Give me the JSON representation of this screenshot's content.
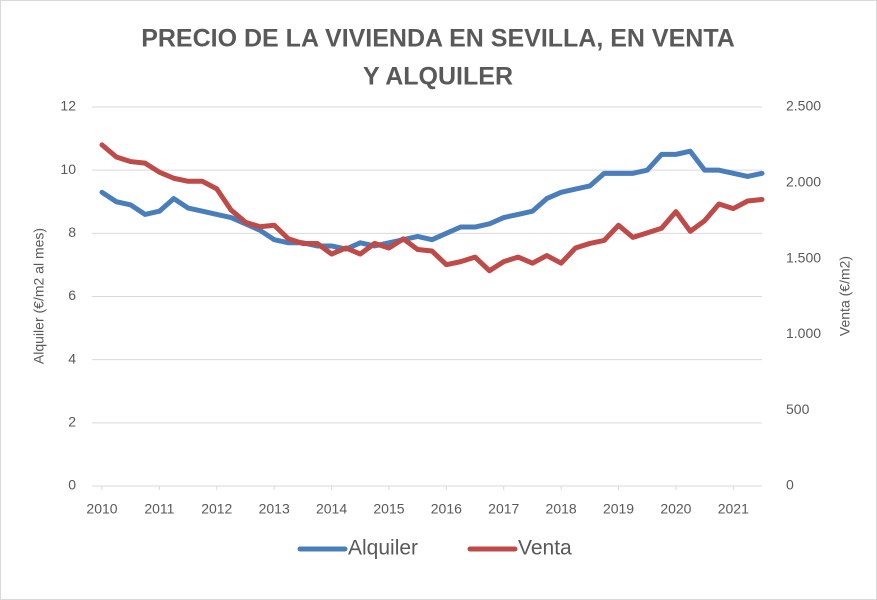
{
  "chart_data": {
    "type": "line",
    "title": [
      "PRECIO DE LA VIVIENDA EN SEVILLA, EN VENTA",
      "Y ALQUILER"
    ],
    "y_label": "Alquiler (€/m2 al mes)",
    "y2_label": "Venta (€/m2)",
    "x": [
      2010,
      2010.25,
      2010.5,
      2010.75,
      2011,
      2011.25,
      2011.5,
      2011.75,
      2012,
      2012.25,
      2012.5,
      2012.75,
      2013,
      2013.25,
      2013.5,
      2013.75,
      2014,
      2014.25,
      2014.5,
      2014.75,
      2015,
      2015.25,
      2015.5,
      2015.75,
      2016,
      2016.25,
      2016.5,
      2016.75,
      2017,
      2017.25,
      2017.5,
      2017.75,
      2018,
      2018.25,
      2018.5,
      2018.75,
      2019,
      2019.25,
      2019.5,
      2019.75,
      2020,
      2020.25,
      2020.5,
      2020.75,
      2021,
      2021.25,
      2021.5
    ],
    "xlim": [
      2010,
      2021.5
    ],
    "xticks": [
      2010,
      2011,
      2012,
      2013,
      2014,
      2015,
      2016,
      2017,
      2018,
      2019,
      2020,
      2021
    ],
    "ylim": [
      0,
      12
    ],
    "yticks": [
      0,
      2,
      4,
      6,
      8,
      10,
      12
    ],
    "y2lim": [
      0,
      2500
    ],
    "y2ticks": [
      0,
      500,
      {
        "value": 1000,
        "label": "1.000"
      },
      {
        "value": 1500,
        "label": "1.500"
      },
      {
        "value": 2000,
        "label": "2.000"
      },
      {
        "value": 2500,
        "label": "2.500"
      }
    ],
    "grid": true,
    "legend": "bottom",
    "series": [
      {
        "name": "Alquiler",
        "color": "#4a7ebb",
        "values": [
          9.3,
          9.0,
          8.9,
          8.6,
          8.7,
          9.1,
          8.8,
          8.7,
          8.6,
          8.5,
          8.3,
          8.1,
          7.8,
          7.7,
          7.7,
          7.6,
          7.6,
          7.5,
          7.7,
          7.6,
          7.7,
          7.8,
          7.9,
          7.8,
          8.0,
          8.2,
          8.2,
          8.3,
          8.5,
          8.6,
          8.7,
          9.1,
          9.3,
          9.4,
          9.5,
          9.9,
          9.9,
          9.9,
          10.0,
          10.5,
          10.5,
          10.6,
          10.0,
          10.0,
          9.9,
          9.8,
          9.9
        ]
      },
      {
        "name": "Venta",
        "color": "#be4b48",
        "axis": "y2",
        "values": [
          2250,
          2170,
          2140,
          2130,
          2070,
          2030,
          2010,
          2010,
          1960,
          1820,
          1740,
          1710,
          1720,
          1630,
          1600,
          1600,
          1530,
          1570,
          1530,
          1600,
          1570,
          1630,
          1560,
          1550,
          1460,
          1480,
          1510,
          1420,
          1480,
          1510,
          1470,
          1520,
          1470,
          1570,
          1600,
          1620,
          1720,
          1640,
          1670,
          1700,
          1810,
          1680,
          1750,
          1860,
          1830,
          1880,
          1890
        ]
      }
    ]
  }
}
